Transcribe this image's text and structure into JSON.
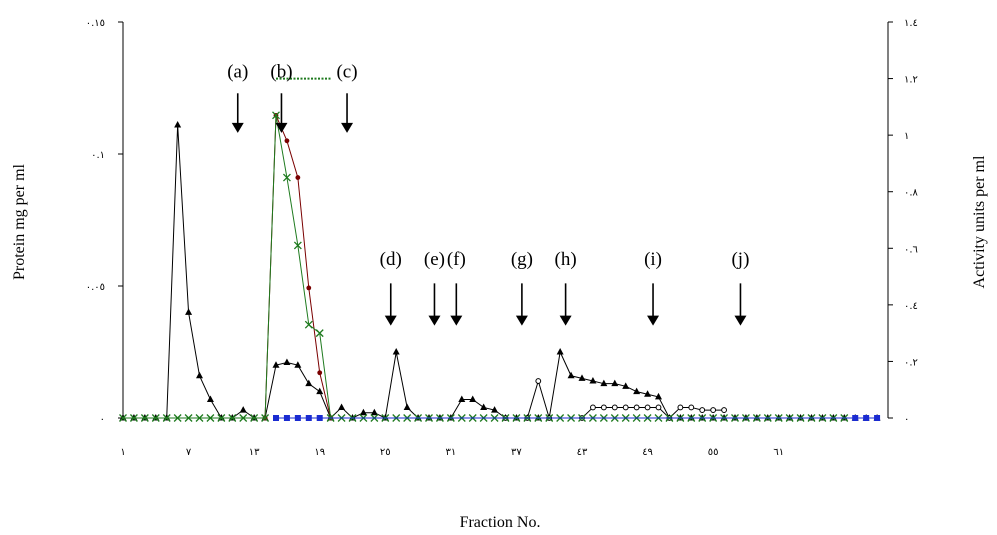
{
  "chart_data": {
    "type": "line",
    "title": "",
    "xlabel": "Fraction No.",
    "ylabel_left": "Protein mg per ml",
    "ylabel_right": "Activity units per ml",
    "x_ticks": [
      "١",
      "٧",
      "١٣",
      "١٩",
      "٢٥",
      "٣١",
      "٣٧",
      "٤٣",
      "٤٩",
      "٥٥",
      "٦١"
    ],
    "x_tick_values": [
      1,
      7,
      13,
      19,
      25,
      31,
      37,
      43,
      49,
      55,
      61
    ],
    "xlim": [
      0,
      70
    ],
    "y_left_ticks": [
      "٠",
      "٠.٠٥",
      "٠.١",
      "٠.١٥"
    ],
    "y_left_values": [
      0,
      0.05,
      0.1,
      0.15
    ],
    "ylim_left": [
      0,
      0.15
    ],
    "y_right_ticks": [
      "٠",
      "٠.٢",
      "٠.٤",
      "٠.٦",
      "٠.٨",
      "١",
      "١.٢",
      "١.٤"
    ],
    "y_right_values": [
      0,
      0.2,
      0.4,
      0.6,
      0.8,
      1.0,
      1.2,
      1.4
    ],
    "ylim_right": [
      0,
      1.4
    ],
    "grid": false,
    "series": [
      {
        "axis": "left",
        "color": "#000000",
        "marker": "triangle",
        "points": [
          [
            0,
            0
          ],
          [
            1,
            0
          ],
          [
            2,
            0
          ],
          [
            3,
            0
          ],
          [
            4,
            0
          ],
          [
            5,
            0.111
          ],
          [
            6,
            0.04
          ],
          [
            7,
            0.016
          ],
          [
            8,
            0.007
          ],
          [
            9,
            0
          ],
          [
            10,
            0
          ],
          [
            11,
            0.003
          ],
          [
            12,
            0
          ],
          [
            13,
            0
          ],
          [
            14,
            0.02
          ],
          [
            15,
            0.021
          ],
          [
            16,
            0.02
          ],
          [
            17,
            0.013
          ],
          [
            18,
            0.01
          ],
          [
            19,
            0
          ],
          [
            20,
            0.004
          ],
          [
            21,
            0
          ],
          [
            22,
            0.002
          ],
          [
            23,
            0.002
          ],
          [
            24,
            0
          ],
          [
            25,
            0.025
          ],
          [
            26,
            0.004
          ],
          [
            27,
            0
          ],
          [
            28,
            0
          ],
          [
            29,
            0
          ],
          [
            30,
            0
          ],
          [
            31,
            0.007
          ],
          [
            32,
            0.007
          ],
          [
            33,
            0.004
          ],
          [
            34,
            0.003
          ],
          [
            35,
            0
          ],
          [
            36,
            0
          ],
          [
            37,
            0
          ],
          [
            38,
            0
          ],
          [
            39,
            0
          ],
          [
            40,
            0.025
          ],
          [
            41,
            0.016
          ],
          [
            42,
            0.015
          ],
          [
            43,
            0.014
          ],
          [
            44,
            0.013
          ],
          [
            45,
            0.013
          ],
          [
            46,
            0.012
          ],
          [
            47,
            0.01
          ],
          [
            48,
            0.009
          ],
          [
            49,
            0.008
          ],
          [
            50,
            0
          ],
          [
            51,
            0
          ],
          [
            52,
            0
          ],
          [
            53,
            0
          ],
          [
            54,
            0
          ],
          [
            55,
            0
          ],
          [
            56,
            0
          ],
          [
            57,
            0
          ],
          [
            58,
            0
          ],
          [
            59,
            0
          ],
          [
            60,
            0
          ],
          [
            61,
            0
          ],
          [
            62,
            0
          ],
          [
            63,
            0
          ],
          [
            64,
            0
          ],
          [
            65,
            0
          ],
          [
            66,
            0
          ],
          [
            67,
            0
          ],
          [
            68,
            0
          ],
          [
            69,
            0
          ]
        ]
      },
      {
        "axis": "left",
        "color": "#000000",
        "marker": "circle-open",
        "points": [
          [
            35,
            0
          ],
          [
            37,
            0
          ],
          [
            38,
            0.014
          ],
          [
            39,
            0
          ],
          [
            42,
            0
          ],
          [
            43,
            0.004
          ],
          [
            44,
            0.004
          ],
          [
            45,
            0.004
          ],
          [
            46,
            0.004
          ],
          [
            47,
            0.004
          ],
          [
            48,
            0.004
          ],
          [
            49,
            0.004
          ],
          [
            50,
            0
          ],
          [
            51,
            0.004
          ],
          [
            52,
            0.004
          ],
          [
            53,
            0.003
          ],
          [
            54,
            0.003
          ],
          [
            55,
            0.003
          ]
        ]
      },
      {
        "axis": "right",
        "color": "#7a0000",
        "marker": "circle",
        "points": [
          [
            13,
            0
          ],
          [
            14,
            1.07
          ],
          [
            15,
            0.98
          ],
          [
            16,
            0.85
          ],
          [
            17,
            0.46
          ],
          [
            18,
            0.16
          ],
          [
            19,
            0
          ]
        ]
      },
      {
        "axis": "right",
        "color": "#1e7a1e",
        "marker": "x",
        "points": [
          [
            0,
            0
          ],
          [
            1,
            0
          ],
          [
            2,
            0
          ],
          [
            3,
            0
          ],
          [
            4,
            0
          ],
          [
            5,
            0
          ],
          [
            6,
            0
          ],
          [
            7,
            0
          ],
          [
            8,
            0
          ],
          [
            9,
            0
          ],
          [
            10,
            0
          ],
          [
            11,
            0
          ],
          [
            12,
            0
          ],
          [
            13,
            0
          ],
          [
            14,
            1.07
          ],
          [
            15,
            0.85
          ],
          [
            16,
            0.61
          ],
          [
            17,
            0.33
          ],
          [
            18,
            0.3
          ],
          [
            19,
            0
          ],
          [
            20,
            0
          ],
          [
            21,
            0
          ],
          [
            22,
            0
          ],
          [
            23,
            0
          ],
          [
            24,
            0
          ],
          [
            25,
            0
          ],
          [
            26,
            0
          ],
          [
            27,
            0
          ],
          [
            28,
            0
          ],
          [
            29,
            0
          ],
          [
            30,
            0
          ],
          [
            31,
            0
          ],
          [
            32,
            0
          ],
          [
            33,
            0
          ],
          [
            34,
            0
          ],
          [
            35,
            0
          ],
          [
            36,
            0
          ],
          [
            37,
            0
          ],
          [
            38,
            0
          ],
          [
            39,
            0
          ],
          [
            40,
            0
          ],
          [
            41,
            0
          ],
          [
            42,
            0
          ],
          [
            43,
            0
          ],
          [
            44,
            0
          ],
          [
            45,
            0
          ],
          [
            46,
            0
          ],
          [
            47,
            0
          ],
          [
            48,
            0
          ],
          [
            49,
            0
          ],
          [
            50,
            0
          ],
          [
            51,
            0
          ],
          [
            52,
            0
          ],
          [
            53,
            0
          ],
          [
            54,
            0
          ],
          [
            55,
            0
          ],
          [
            56,
            0
          ],
          [
            57,
            0
          ],
          [
            58,
            0
          ],
          [
            59,
            0
          ],
          [
            60,
            0
          ],
          [
            61,
            0
          ],
          [
            62,
            0
          ],
          [
            63,
            0
          ],
          [
            64,
            0
          ],
          [
            65,
            0
          ],
          [
            66,
            0
          ]
        ]
      },
      {
        "axis": "right",
        "color": "#1a2bd1",
        "marker": "square",
        "points": [
          [
            14,
            0
          ],
          [
            15,
            0
          ],
          [
            16,
            0
          ],
          [
            17,
            0
          ],
          [
            18,
            0
          ],
          [
            67,
            0
          ],
          [
            68,
            0
          ],
          [
            69,
            0
          ]
        ]
      },
      {
        "axis": "right",
        "color": "#1e7a1e",
        "marker": "dotted-line",
        "points": [
          [
            14,
            1.2
          ],
          [
            19,
            1.2
          ]
        ]
      }
    ],
    "annotations": [
      {
        "text": "(a)",
        "x": 10.5,
        "label_y": 0.129,
        "arrow_top": 0.123,
        "arrow_bottom": 0.108
      },
      {
        "text": "(b)",
        "x": 14.5,
        "label_y": 0.129,
        "arrow_top": 0.123,
        "arrow_bottom": 0.108
      },
      {
        "text": "(c)",
        "x": 20.5,
        "label_y": 0.129,
        "arrow_top": 0.123,
        "arrow_bottom": 0.108
      },
      {
        "text": "(d)",
        "x": 24.5,
        "label_y": 0.058,
        "arrow_top": 0.051,
        "arrow_bottom": 0.035
      },
      {
        "text": "(e)",
        "x": 28.5,
        "label_y": 0.058,
        "arrow_top": 0.051,
        "arrow_bottom": 0.035
      },
      {
        "text": "(f)",
        "x": 30.5,
        "label_y": 0.058,
        "arrow_top": 0.051,
        "arrow_bottom": 0.035
      },
      {
        "text": "(g)",
        "x": 36.5,
        "label_y": 0.058,
        "arrow_top": 0.051,
        "arrow_bottom": 0.035
      },
      {
        "text": "(h)",
        "x": 40.5,
        "label_y": 0.058,
        "arrow_top": 0.051,
        "arrow_bottom": 0.035
      },
      {
        "text": "(i)",
        "x": 48.5,
        "label_y": 0.058,
        "arrow_top": 0.051,
        "arrow_bottom": 0.035
      },
      {
        "text": "(j)",
        "x": 56.5,
        "label_y": 0.058,
        "arrow_top": 0.051,
        "arrow_bottom": 0.035
      }
    ]
  }
}
